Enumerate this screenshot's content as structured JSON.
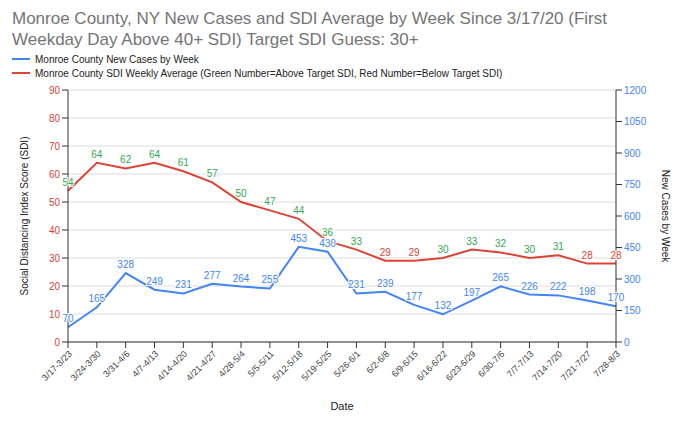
{
  "chart_data": {
    "type": "line",
    "title": "Monroe County, NY New Cases and SDI Average by Week Since 3/17/20 (First Weekday Day Above 40+ SDI) Target SDI Guess: 30+",
    "x_label": "Date",
    "y_label": "Social Distancing Index Score (SDI)",
    "y2_label": "New Cases by Week",
    "categories": [
      "3/17-3/23",
      "3/24-3/30",
      "3/31-4/6",
      "4/7-4/13",
      "4/14-4/20",
      "4/21-4/27",
      "4/28-5/4",
      "5/5-5/11",
      "5/12-5/18",
      "5/19-5/25",
      "5/26-6/1",
      "6/2-6/8",
      "6/9-6/15",
      "6/16-6/22",
      "6/23-6/29",
      "6/30-7/6",
      "7/7-7/13",
      "7/14-7/20",
      "7/21-7/27",
      "7/28-8/3"
    ],
    "series": [
      {
        "name": "Monroe County New Cases by Week",
        "color": "#4285f4",
        "axis": "y2",
        "marker": "none",
        "values": [
          70,
          165,
          328,
          249,
          231,
          277,
          264,
          255,
          453,
          430,
          231,
          239,
          177,
          132,
          197,
          265,
          226,
          222,
          198,
          170
        ]
      },
      {
        "name": "Monroe County SDI Weekly Average (Green Number=Above Target SDI, Red Number=Below Target SDI)",
        "color": "#db4437",
        "marker": "none",
        "values": [
          54,
          64,
          62,
          64,
          61,
          57,
          50,
          47,
          44,
          36,
          33,
          29,
          29,
          30,
          33,
          32,
          30,
          31,
          28,
          28
        ],
        "colors": [
          "#34a853",
          "#34a853",
          "#34a853",
          "#34a853",
          "#34a853",
          "#34a853",
          "#34a853",
          "#34a853",
          "#34a853",
          "#34a853",
          "#34a853",
          "#db4437",
          "#db4437",
          "#34a853",
          "#34a853",
          "#34a853",
          "#34a853",
          "#34a853",
          "#db4437",
          "#db4437"
        ]
      }
    ],
    "ylim": [
      0,
      90
    ],
    "yticks": [
      0,
      10,
      20,
      30,
      40,
      50,
      60,
      70,
      80,
      90
    ],
    "y2lim": [
      0,
      1200
    ],
    "y2ticks": [
      0,
      150,
      300,
      450,
      600,
      750,
      900,
      1050,
      1200
    ],
    "grid": true,
    "legend": "top",
    "data_labels": true
  }
}
